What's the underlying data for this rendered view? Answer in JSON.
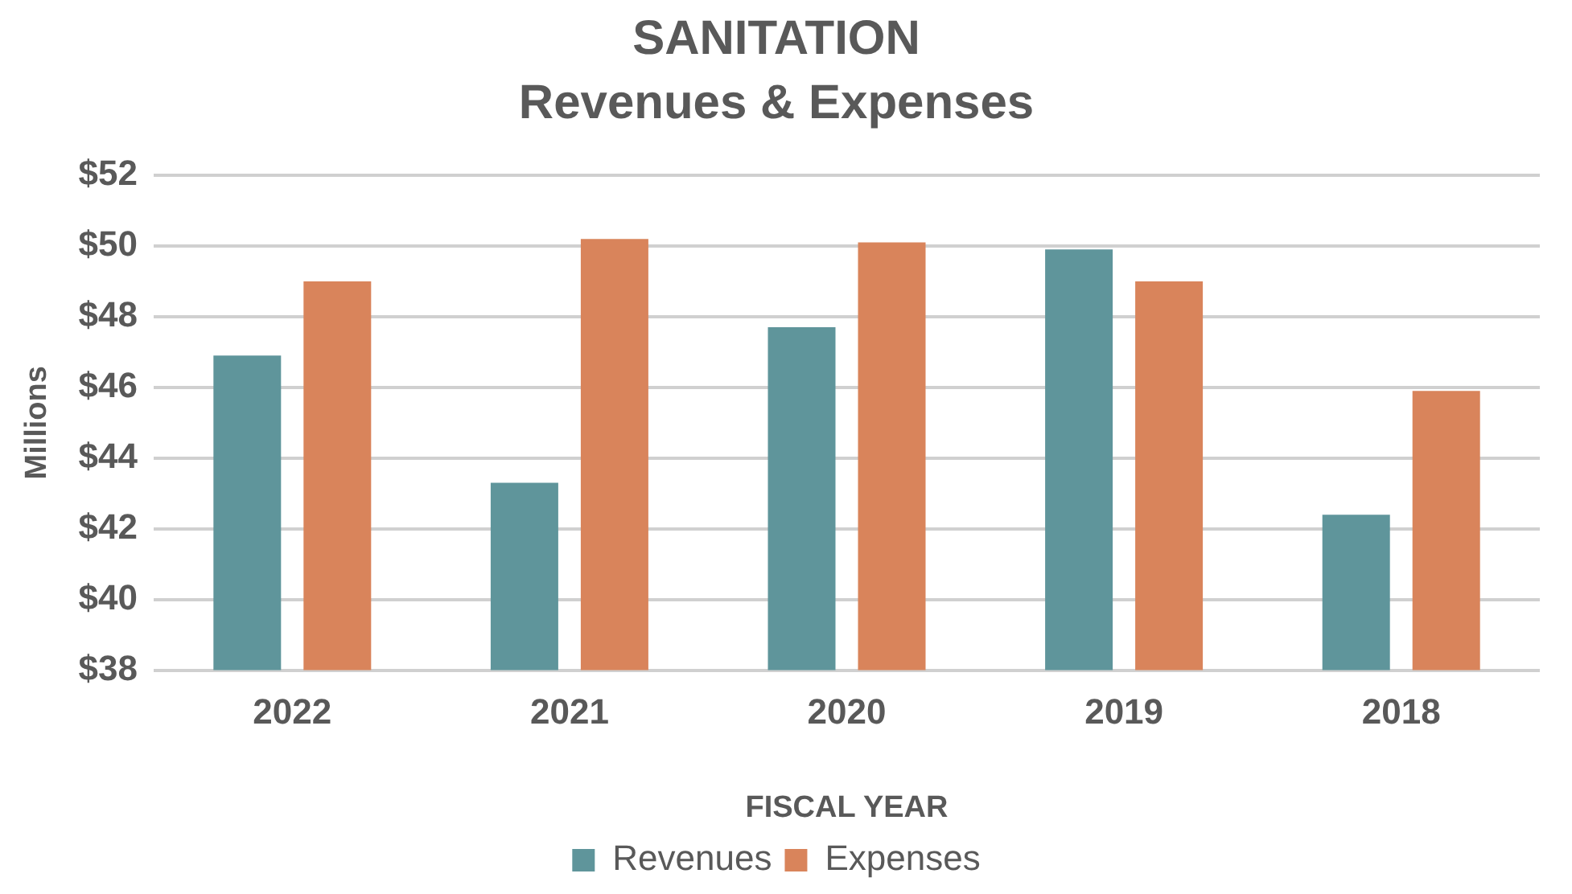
{
  "chart_data": {
    "type": "bar",
    "title": "SANITATION",
    "subtitle": "Revenues & Expenses",
    "xlabel": "FISCAL YEAR",
    "ylabel": "Millions",
    "categories": [
      "2022",
      "2021",
      "2020",
      "2019",
      "2018"
    ],
    "series": [
      {
        "name": "Revenues",
        "color": "#5f959b",
        "values": [
          46.9,
          43.3,
          47.7,
          49.9,
          42.4
        ]
      },
      {
        "name": "Expenses",
        "color": "#d9845b",
        "values": [
          49.0,
          50.2,
          50.1,
          49.0,
          45.9
        ]
      }
    ],
    "ylim": [
      38,
      52
    ],
    "yticks": [
      {
        "value": 38,
        "label": "$38"
      },
      {
        "value": 40,
        "label": "$40"
      },
      {
        "value": 42,
        "label": "$42"
      },
      {
        "value": 44,
        "label": "$44"
      },
      {
        "value": 46,
        "label": "$46"
      },
      {
        "value": 48,
        "label": "$48"
      },
      {
        "value": 50,
        "label": "$50"
      },
      {
        "value": 52,
        "label": "$52"
      }
    ],
    "grid": "y",
    "legend": "bottom"
  }
}
